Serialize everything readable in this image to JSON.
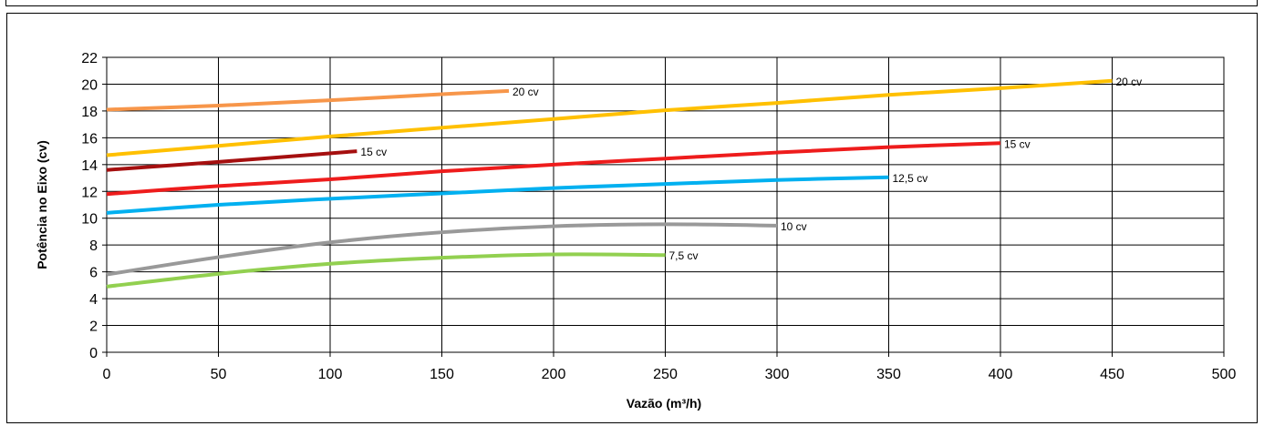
{
  "chart_data": {
    "type": "line",
    "title": "",
    "xlabel": "Vazão (m³/h)",
    "ylabel": "Potência no Eixo (cv)",
    "xlim": [
      0,
      500
    ],
    "ylim": [
      0,
      22
    ],
    "xticks": [
      0,
      50,
      100,
      150,
      200,
      250,
      300,
      350,
      400,
      450,
      500
    ],
    "yticks": [
      0,
      2,
      4,
      6,
      8,
      10,
      12,
      14,
      16,
      18,
      20,
      22
    ],
    "grid": true,
    "legend": "none",
    "series": [
      {
        "name": "20 cv",
        "color": "#f7964a",
        "x": [
          0,
          50,
          100,
          150,
          180
        ],
        "y": [
          18.1,
          18.4,
          18.8,
          19.25,
          19.5
        ]
      },
      {
        "name": "20 cv",
        "color": "#ffc000",
        "x": [
          0,
          50,
          100,
          150,
          200,
          250,
          300,
          350,
          400,
          450
        ],
        "y": [
          14.7,
          15.4,
          16.1,
          16.75,
          17.4,
          18.05,
          18.6,
          19.2,
          19.7,
          20.25
        ]
      },
      {
        "name": "15 cv",
        "color": "#a50f0f",
        "x": [
          0,
          50,
          112
        ],
        "y": [
          13.6,
          14.2,
          15.0
        ]
      },
      {
        "name": "15 cv",
        "color": "#ee1c1c",
        "x": [
          0,
          50,
          100,
          150,
          200,
          250,
          300,
          350,
          400
        ],
        "y": [
          11.8,
          12.4,
          12.9,
          13.5,
          14.0,
          14.45,
          14.9,
          15.3,
          15.6
        ]
      },
      {
        "name": "12,5 cv",
        "color": "#00b0f0",
        "x": [
          0,
          50,
          100,
          150,
          200,
          250,
          300,
          350
        ],
        "y": [
          10.4,
          11.0,
          11.45,
          11.85,
          12.25,
          12.55,
          12.85,
          13.05
        ]
      },
      {
        "name": "10 cv",
        "color": "#999999",
        "x": [
          0,
          50,
          100,
          150,
          200,
          250,
          300
        ],
        "y": [
          5.8,
          7.1,
          8.2,
          8.95,
          9.4,
          9.55,
          9.45
        ]
      },
      {
        "name": "7,5 cv",
        "color": "#92d050",
        "x": [
          0,
          50,
          100,
          150,
          200,
          250
        ],
        "y": [
          4.9,
          5.85,
          6.6,
          7.05,
          7.3,
          7.25
        ]
      }
    ]
  }
}
